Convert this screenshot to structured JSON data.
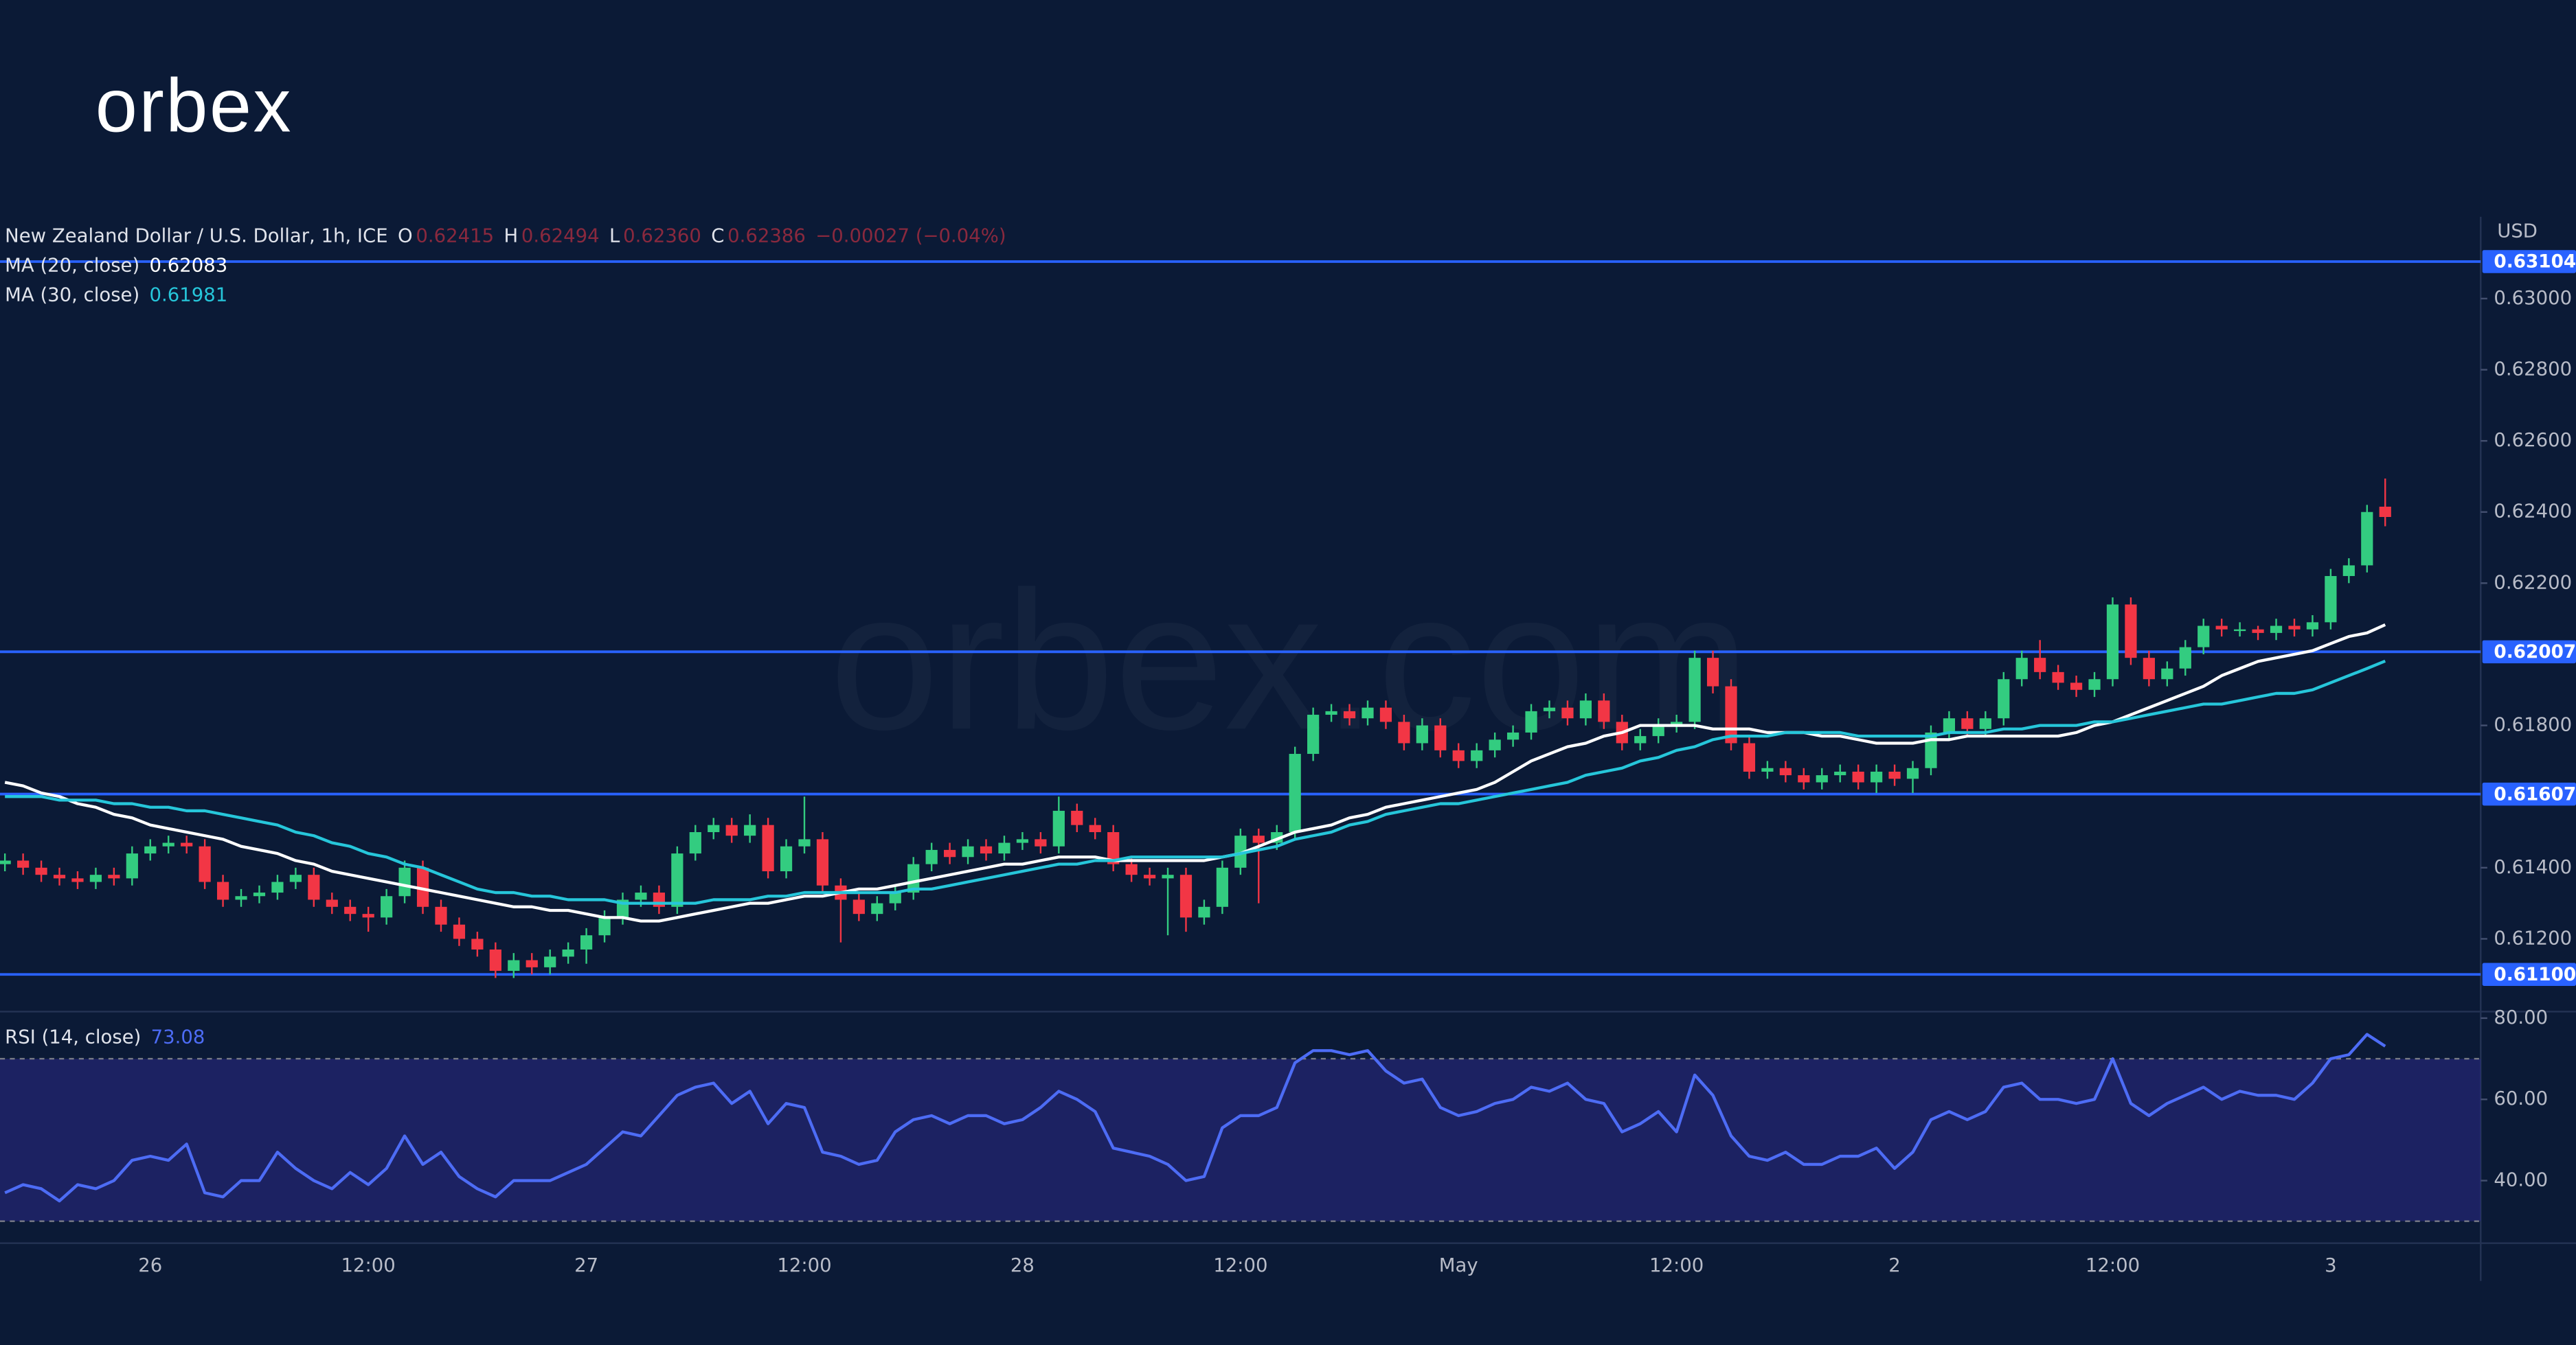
{
  "logo": "orbex",
  "watermark": "orbex.com",
  "chart_data": [
    {
      "type": "candlestick",
      "title": "New Zealand Dollar / U.S. Dollar, 1h, ICE",
      "last_bar_keys": [
        "O",
        "H",
        "L",
        "C"
      ],
      "last_bar_labels": [
        "0.62415",
        "0.62494",
        "0.62360",
        "0.62386"
      ],
      "change": "−0.00027 (−0.04%)",
      "axis_label": "USD",
      "up_color": "#33cc80",
      "down_color": "#f23645",
      "categories": [
        null,
        null,
        null,
        null,
        null,
        null,
        null,
        null,
        "26",
        null,
        null,
        null,
        null,
        null,
        null,
        null,
        null,
        null,
        null,
        null,
        "12:00",
        null,
        null,
        null,
        null,
        null,
        null,
        null,
        null,
        null,
        null,
        null,
        "27",
        null,
        null,
        null,
        null,
        null,
        null,
        null,
        null,
        null,
        null,
        null,
        "12:00",
        null,
        null,
        null,
        null,
        null,
        null,
        null,
        null,
        null,
        null,
        null,
        "28",
        null,
        null,
        null,
        null,
        null,
        null,
        null,
        null,
        null,
        null,
        null,
        "12:00",
        null,
        null,
        null,
        null,
        null,
        null,
        null,
        null,
        null,
        null,
        null,
        "May",
        null,
        null,
        null,
        null,
        null,
        null,
        null,
        null,
        null,
        null,
        null,
        "12:00",
        null,
        null,
        null,
        null,
        null,
        null,
        null,
        null,
        null,
        null,
        null,
        "2",
        null,
        null,
        null,
        null,
        null,
        null,
        null,
        null,
        null,
        null,
        null,
        "12:00",
        null,
        null,
        null,
        null,
        null,
        null,
        null,
        null,
        null,
        null,
        null,
        "3",
        null,
        null,
        null
      ],
      "open": [
        0.6141,
        0.6142,
        0.614,
        0.6138,
        0.6137,
        0.6136,
        0.6138,
        0.6137,
        0.6144,
        0.6146,
        0.6147,
        0.6146,
        0.6136,
        0.6131,
        0.6132,
        0.6133,
        0.6136,
        0.6138,
        0.6131,
        0.6129,
        0.6127,
        0.6126,
        0.6132,
        0.614,
        0.6129,
        0.6124,
        0.612,
        0.6117,
        0.6111,
        0.6114,
        0.6112,
        0.6115,
        0.6117,
        0.6121,
        0.6126,
        0.6131,
        0.6133,
        0.6129,
        0.6144,
        0.615,
        0.6152,
        0.6149,
        0.6152,
        0.6139,
        0.6146,
        0.6148,
        0.6135,
        0.6131,
        0.6127,
        0.613,
        0.6133,
        0.6141,
        0.6145,
        0.6143,
        0.6146,
        0.6144,
        0.6147,
        0.6148,
        0.6146,
        0.6156,
        0.6152,
        0.615,
        0.6141,
        0.6138,
        0.6137,
        0.6138,
        0.6126,
        0.6129,
        0.614,
        0.6149,
        0.6147,
        0.615,
        0.6172,
        0.6183,
        0.6184,
        0.6182,
        0.6185,
        0.6181,
        0.6175,
        0.618,
        0.6173,
        0.617,
        0.6173,
        0.6176,
        0.6178,
        0.6184,
        0.6185,
        0.6182,
        0.6187,
        0.6181,
        0.6175,
        0.6177,
        0.618,
        0.6181,
        0.6199,
        0.6191,
        0.6175,
        0.6167,
        0.6168,
        0.6166,
        0.6164,
        0.6166,
        0.6167,
        0.6164,
        0.6167,
        0.6165,
        0.6168,
        0.6178,
        0.6182,
        0.6179,
        0.6182,
        0.6193,
        0.6199,
        0.6195,
        0.6192,
        0.619,
        0.6193,
        0.6214,
        0.6199,
        0.6193,
        0.6196,
        0.6202,
        0.6208,
        0.6207,
        0.6207,
        0.6206,
        0.6208,
        0.6207,
        0.6209,
        0.6222,
        0.6225,
        0.62415
      ],
      "high": [
        0.6144,
        0.6144,
        0.6142,
        0.614,
        0.6139,
        0.614,
        0.614,
        0.6146,
        0.6148,
        0.6149,
        0.6149,
        0.6148,
        0.6138,
        0.6134,
        0.6135,
        0.6138,
        0.614,
        0.614,
        0.6133,
        0.6131,
        0.6129,
        0.6134,
        0.6142,
        0.6142,
        0.6131,
        0.6126,
        0.6122,
        0.6119,
        0.6116,
        0.6116,
        0.6117,
        0.6119,
        0.6123,
        0.6128,
        0.6133,
        0.6135,
        0.6135,
        0.6146,
        0.6152,
        0.6154,
        0.6154,
        0.6155,
        0.6154,
        0.6148,
        0.616,
        0.615,
        0.6137,
        0.6133,
        0.6132,
        0.6135,
        0.6143,
        0.6147,
        0.6147,
        0.6148,
        0.6148,
        0.6149,
        0.615,
        0.615,
        0.616,
        0.6158,
        0.6154,
        0.6152,
        0.6143,
        0.614,
        0.614,
        0.614,
        0.6131,
        0.6142,
        0.6151,
        0.6151,
        0.6152,
        0.6174,
        0.6185,
        0.6186,
        0.6186,
        0.6187,
        0.6187,
        0.6183,
        0.6182,
        0.6182,
        0.6175,
        0.6175,
        0.6178,
        0.618,
        0.6186,
        0.6187,
        0.6187,
        0.6189,
        0.6189,
        0.6183,
        0.6179,
        0.6182,
        0.6183,
        0.6201,
        0.6201,
        0.6193,
        0.6177,
        0.617,
        0.617,
        0.6168,
        0.6168,
        0.6169,
        0.6169,
        0.6169,
        0.6169,
        0.617,
        0.618,
        0.6184,
        0.6184,
        0.6184,
        0.6195,
        0.6201,
        0.6204,
        0.6197,
        0.6194,
        0.6195,
        0.6216,
        0.6216,
        0.6201,
        0.6198,
        0.6204,
        0.621,
        0.621,
        0.6209,
        0.6208,
        0.621,
        0.621,
        0.6211,
        0.6224,
        0.6227,
        0.6242,
        0.62494
      ],
      "low": [
        0.6139,
        0.6138,
        0.6136,
        0.6135,
        0.6134,
        0.6134,
        0.6135,
        0.6135,
        0.6142,
        0.6144,
        0.6144,
        0.6134,
        0.6129,
        0.6129,
        0.613,
        0.6131,
        0.6134,
        0.6129,
        0.6127,
        0.6125,
        0.6122,
        0.6124,
        0.613,
        0.6127,
        0.6122,
        0.6118,
        0.6115,
        0.6109,
        0.6109,
        0.611,
        0.611,
        0.6113,
        0.6113,
        0.6119,
        0.6124,
        0.6129,
        0.6127,
        0.6127,
        0.6142,
        0.6148,
        0.6147,
        0.6147,
        0.6137,
        0.6137,
        0.6144,
        0.6133,
        0.6119,
        0.6125,
        0.6125,
        0.6128,
        0.6131,
        0.6139,
        0.6141,
        0.6141,
        0.6142,
        0.6142,
        0.6145,
        0.6144,
        0.6144,
        0.615,
        0.6148,
        0.6139,
        0.6136,
        0.6135,
        0.6121,
        0.6122,
        0.6124,
        0.6127,
        0.6138,
        0.613,
        0.6145,
        0.6148,
        0.617,
        0.6181,
        0.618,
        0.618,
        0.6179,
        0.6173,
        0.6173,
        0.6171,
        0.6168,
        0.6168,
        0.6171,
        0.6174,
        0.6176,
        0.6182,
        0.618,
        0.618,
        0.6179,
        0.6173,
        0.6173,
        0.6175,
        0.6178,
        0.6179,
        0.6189,
        0.6173,
        0.6165,
        0.6165,
        0.6164,
        0.6162,
        0.6162,
        0.6164,
        0.6162,
        0.6161,
        0.6163,
        0.6161,
        0.6166,
        0.6176,
        0.6177,
        0.6177,
        0.618,
        0.6191,
        0.6193,
        0.619,
        0.6188,
        0.6188,
        0.6191,
        0.6197,
        0.6191,
        0.6191,
        0.6194,
        0.62,
        0.6205,
        0.6205,
        0.6204,
        0.6204,
        0.6205,
        0.6205,
        0.6207,
        0.622,
        0.6223,
        0.6236
      ],
      "close": [
        0.6142,
        0.614,
        0.6138,
        0.6137,
        0.6136,
        0.6138,
        0.6137,
        0.6144,
        0.6146,
        0.6147,
        0.6146,
        0.6136,
        0.6131,
        0.6132,
        0.6133,
        0.6136,
        0.6138,
        0.6131,
        0.6129,
        0.6127,
        0.6126,
        0.6132,
        0.614,
        0.6129,
        0.6124,
        0.612,
        0.6117,
        0.6111,
        0.6114,
        0.6112,
        0.6115,
        0.6117,
        0.6121,
        0.6126,
        0.6131,
        0.6133,
        0.6129,
        0.6144,
        0.615,
        0.6152,
        0.6149,
        0.6152,
        0.6139,
        0.6146,
        0.6148,
        0.6135,
        0.6131,
        0.6127,
        0.613,
        0.6133,
        0.6141,
        0.6145,
        0.6143,
        0.6146,
        0.6144,
        0.6147,
        0.6148,
        0.6146,
        0.6156,
        0.6152,
        0.615,
        0.6141,
        0.6138,
        0.6137,
        0.6138,
        0.6126,
        0.6129,
        0.614,
        0.6149,
        0.6147,
        0.615,
        0.6172,
        0.6183,
        0.6184,
        0.6182,
        0.6185,
        0.6181,
        0.6175,
        0.618,
        0.6173,
        0.617,
        0.6173,
        0.6176,
        0.6178,
        0.6184,
        0.6185,
        0.6182,
        0.6187,
        0.6181,
        0.6175,
        0.6177,
        0.618,
        0.6181,
        0.6199,
        0.6191,
        0.6175,
        0.6167,
        0.6168,
        0.6166,
        0.6164,
        0.6166,
        0.6167,
        0.6164,
        0.6167,
        0.6165,
        0.6168,
        0.6178,
        0.6182,
        0.6179,
        0.6182,
        0.6193,
        0.6199,
        0.6195,
        0.6192,
        0.619,
        0.6193,
        0.6214,
        0.6199,
        0.6193,
        0.6196,
        0.6202,
        0.6208,
        0.6207,
        0.6207,
        0.6206,
        0.6208,
        0.6207,
        0.6209,
        0.6222,
        0.6225,
        0.624,
        0.62386
      ],
      "series": [
        {
          "name": "MA (20, close)",
          "color": "#ffffff",
          "values": [
            0.6164,
            0.6163,
            0.6161,
            0.616,
            0.6158,
            0.6157,
            0.6155,
            0.6154,
            0.6152,
            0.6151,
            0.615,
            0.6149,
            0.6148,
            0.6146,
            0.6145,
            0.6144,
            0.6142,
            0.6141,
            0.6139,
            0.6138,
            0.6137,
            0.6136,
            0.6135,
            0.6134,
            0.6133,
            0.6132,
            0.6131,
            0.613,
            0.6129,
            0.6129,
            0.6128,
            0.6128,
            0.6127,
            0.6126,
            0.6126,
            0.6125,
            0.6125,
            0.6126,
            0.6127,
            0.6128,
            0.6129,
            0.613,
            0.613,
            0.6131,
            0.6132,
            0.6132,
            0.6133,
            0.6134,
            0.6134,
            0.6135,
            0.6136,
            0.6137,
            0.6138,
            0.6139,
            0.614,
            0.6141,
            0.6141,
            0.6142,
            0.6143,
            0.6143,
            0.6143,
            0.6142,
            0.6142,
            0.6142,
            0.6142,
            0.6142,
            0.6142,
            0.6143,
            0.6144,
            0.6146,
            0.6148,
            0.615,
            0.6151,
            0.6152,
            0.6154,
            0.6155,
            0.6157,
            0.6158,
            0.6159,
            0.616,
            0.6161,
            0.6162,
            0.6164,
            0.6167,
            0.617,
            0.6172,
            0.6174,
            0.6175,
            0.6177,
            0.6178,
            0.618,
            0.618,
            0.618,
            0.618,
            0.6179,
            0.6179,
            0.6179,
            0.6178,
            0.6178,
            0.6178,
            0.6177,
            0.6177,
            0.6176,
            0.6175,
            0.6175,
            0.6175,
            0.6176,
            0.6176,
            0.6177,
            0.6177,
            0.6177,
            0.6177,
            0.6177,
            0.6177,
            0.6178,
            0.618,
            0.6181,
            0.6183,
            0.6185,
            0.6187,
            0.6189,
            0.6191,
            0.6194,
            0.6196,
            0.6198,
            0.6199,
            0.62,
            0.6201,
            0.6203,
            0.6205,
            0.6206,
            0.62083
          ]
        },
        {
          "name": "MA (30, close)",
          "color": "#26c6da",
          "values": [
            0.616,
            0.616,
            0.616,
            0.6159,
            0.6159,
            0.6159,
            0.6158,
            0.6158,
            0.6157,
            0.6157,
            0.6156,
            0.6156,
            0.6155,
            0.6154,
            0.6153,
            0.6152,
            0.615,
            0.6149,
            0.6147,
            0.6146,
            0.6144,
            0.6143,
            0.6141,
            0.614,
            0.6138,
            0.6136,
            0.6134,
            0.6133,
            0.6133,
            0.6132,
            0.6132,
            0.6131,
            0.6131,
            0.6131,
            0.613,
            0.613,
            0.613,
            0.613,
            0.613,
            0.6131,
            0.6131,
            0.6131,
            0.6132,
            0.6132,
            0.6133,
            0.6133,
            0.6133,
            0.6133,
            0.6133,
            0.6133,
            0.6134,
            0.6134,
            0.6135,
            0.6136,
            0.6137,
            0.6138,
            0.6139,
            0.614,
            0.6141,
            0.6141,
            0.6142,
            0.6142,
            0.6143,
            0.6143,
            0.6143,
            0.6143,
            0.6143,
            0.6143,
            0.6144,
            0.6145,
            0.6146,
            0.6148,
            0.6149,
            0.615,
            0.6152,
            0.6153,
            0.6155,
            0.6156,
            0.6157,
            0.6158,
            0.6158,
            0.6159,
            0.616,
            0.6161,
            0.6162,
            0.6163,
            0.6164,
            0.6166,
            0.6167,
            0.6168,
            0.617,
            0.6171,
            0.6173,
            0.6174,
            0.6176,
            0.6177,
            0.6177,
            0.6177,
            0.6178,
            0.6178,
            0.6178,
            0.6178,
            0.6177,
            0.6177,
            0.6177,
            0.6177,
            0.6177,
            0.6178,
            0.6178,
            0.6178,
            0.6179,
            0.6179,
            0.618,
            0.618,
            0.618,
            0.6181,
            0.6181,
            0.6182,
            0.6183,
            0.6184,
            0.6185,
            0.6186,
            0.6186,
            0.6187,
            0.6188,
            0.6189,
            0.6189,
            0.619,
            0.6192,
            0.6194,
            0.6196,
            0.61981
          ]
        }
      ],
      "levels": [
        0.63104,
        0.62007,
        0.61607,
        {
          "value": 0.611,
          "label": "0.61100"
        }
      ],
      "level_color": "#2962ff",
      "ylim": [
        0.61,
        0.6323
      ],
      "yticks": [
        {
          "value": 0.612,
          "label": "0.61200"
        },
        {
          "value": 0.614,
          "label": "0.61400"
        },
        {
          "value": 0.618,
          "label": "0.61800"
        },
        {
          "value": 0.622,
          "label": "0.62200"
        },
        {
          "value": 0.624,
          "label": "0.62400"
        },
        {
          "value": 0.626,
          "label": "0.62600"
        },
        {
          "value": 0.628,
          "label": "0.62800"
        },
        {
          "value": 0.63,
          "label": "0.63000"
        }
      ]
    },
    {
      "type": "line",
      "series": [
        {
          "name": "RSI (14, close)",
          "color": "#4d6cf5",
          "values": [
            37,
            39,
            38,
            35,
            39,
            38,
            40,
            45,
            46,
            45,
            49,
            37,
            36,
            40,
            40,
            47,
            43,
            40,
            38,
            42,
            39,
            43,
            51,
            44,
            47,
            41,
            38,
            36,
            40,
            40,
            40,
            42,
            44,
            48,
            52,
            51,
            56,
            61,
            63,
            64,
            59,
            62,
            54,
            59,
            58,
            47,
            46,
            44,
            45,
            52,
            55,
            56,
            54,
            56,
            56,
            54,
            55,
            58,
            62,
            60,
            57,
            48,
            47,
            46,
            44,
            40,
            41,
            53,
            56,
            56,
            58,
            69,
            72,
            72,
            71,
            72,
            67,
            64,
            65,
            58,
            56,
            57,
            59,
            60,
            63,
            62,
            64,
            60,
            59,
            52,
            54,
            57,
            52,
            66,
            61,
            51,
            46,
            45,
            47,
            44,
            44,
            46,
            46,
            48,
            43,
            47,
            55,
            57,
            55,
            57,
            63,
            64,
            60,
            60,
            59,
            60,
            70,
            59,
            56,
            59,
            61,
            63,
            60,
            62,
            61,
            61,
            60,
            64,
            70,
            71,
            76,
            73.08
          ]
        }
      ],
      "levels": [
        70,
        30
      ],
      "level_color": "#787b86",
      "band_color": "#2c2a86",
      "ylim": [
        25,
        81.2
      ],
      "yticks": [
        {
          "value": 40,
          "label": "40.00"
        },
        {
          "value": 60,
          "label": "60.00"
        },
        {
          "value": 80,
          "label": "80.00"
        }
      ]
    }
  ]
}
